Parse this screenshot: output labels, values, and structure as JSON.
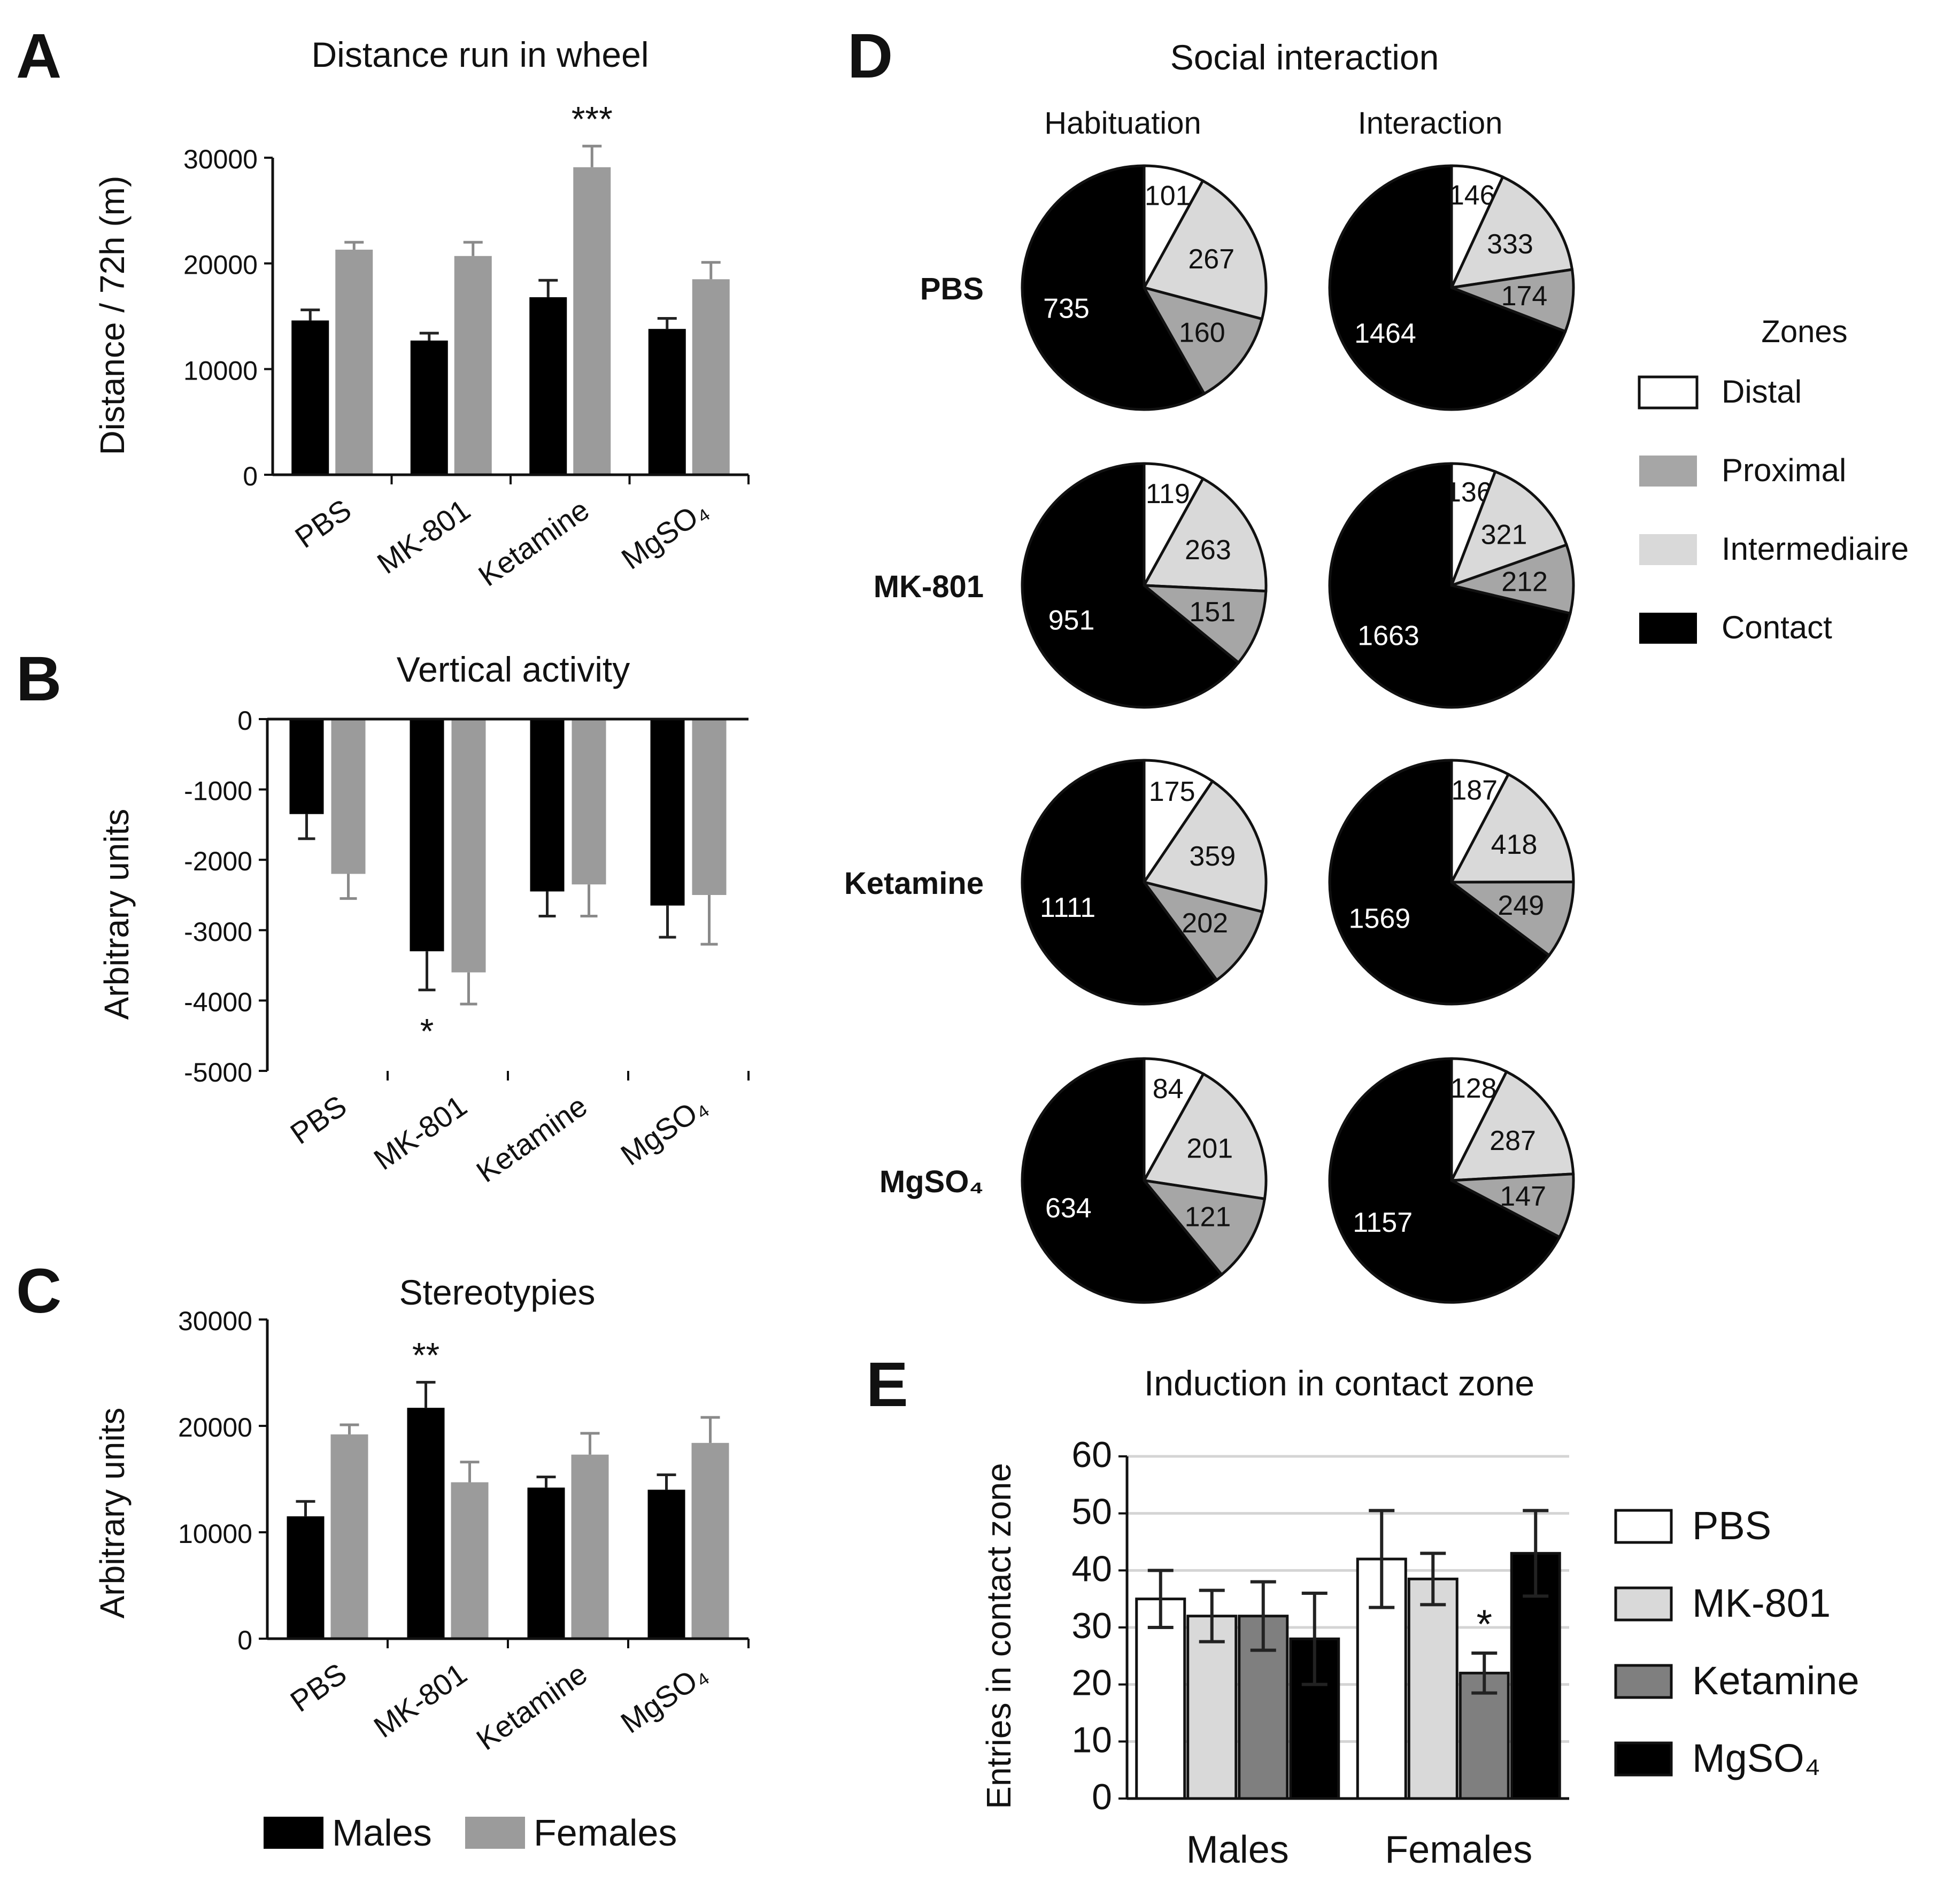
{
  "colors": {
    "males": "#000000",
    "females": "#9b9b9b",
    "distal": "#ffffff",
    "proximal": "#a6a6a6",
    "intermediaire": "#d9d9d9",
    "contact": "#000000",
    "pbs": "#ffffff",
    "mk801": "#d9d9d9",
    "ketamine": "#7f7f7f",
    "mgso4": "#000000"
  },
  "chart_data": [
    {
      "id": "A",
      "panel_label": "A",
      "type": "bar",
      "title": "Distance run in wheel",
      "xlabel": "",
      "ylabel": "Distance / 72h (m)",
      "ylim": [
        0,
        30000
      ],
      "yticks": [
        "0",
        "10000",
        "20000",
        "30000"
      ],
      "categories": [
        "PBS",
        "MK-801",
        "Ketamine",
        "MgSO₄"
      ],
      "series": [
        {
          "name": "Males",
          "values": [
            14600,
            12700,
            16800,
            13800
          ],
          "errors": [
            1000,
            700,
            1600,
            1000
          ]
        },
        {
          "name": "Females",
          "values": [
            21300,
            20700,
            29100,
            18500
          ],
          "errors": [
            700,
            1300,
            2000,
            1600
          ]
        }
      ],
      "annotations": [
        {
          "text": "***",
          "category": 2,
          "series": 1
        }
      ]
    },
    {
      "id": "B",
      "panel_label": "B",
      "type": "bar",
      "title": "Vertical activity",
      "xlabel": "",
      "ylabel": "Arbitrary units",
      "ylim": [
        -5000,
        0
      ],
      "yticks": [
        "-5000",
        "-4000",
        "-3000",
        "-2000",
        "-1000",
        "0"
      ],
      "categories": [
        "PBS",
        "MK-801",
        "Ketamine",
        "MgSO₄"
      ],
      "series": [
        {
          "name": "Males",
          "values": [
            -1350,
            -3300,
            -2450,
            -2650
          ],
          "errors": [
            350,
            550,
            350,
            450
          ]
        },
        {
          "name": "Females",
          "values": [
            -2200,
            -3600,
            -2350,
            -2500
          ],
          "errors": [
            350,
            450,
            450,
            700
          ]
        }
      ],
      "annotations": [
        {
          "text": "*",
          "category": 1,
          "series": 0
        }
      ]
    },
    {
      "id": "C",
      "panel_label": "C",
      "type": "bar",
      "title": "Stereotypies",
      "xlabel": "",
      "ylabel": "Arbitrary units",
      "ylim": [
        0,
        30000
      ],
      "yticks": [
        "0",
        "10000",
        "20000",
        "30000"
      ],
      "categories": [
        "PBS",
        "MK-801",
        "Ketamine",
        "MgSO₄"
      ],
      "series": [
        {
          "name": "Males",
          "values": [
            11500,
            21700,
            14200,
            14000
          ],
          "errors": [
            1400,
            2400,
            1000,
            1400
          ]
        },
        {
          "name": "Females",
          "values": [
            19200,
            14700,
            17300,
            18400
          ],
          "errors": [
            900,
            1900,
            2000,
            2400
          ]
        }
      ],
      "annotations": [
        {
          "text": "**",
          "category": 1,
          "series": 0
        }
      ],
      "legend": {
        "position": "bottom",
        "entries": [
          "Males",
          "Females"
        ]
      }
    },
    {
      "id": "D",
      "panel_label": "D",
      "type": "pie",
      "title": "Social interaction",
      "columns": [
        "Habituation",
        "Interaction"
      ],
      "rows": [
        "PBS",
        "MK-801",
        "Ketamine",
        "MgSO₄"
      ],
      "slice_order": [
        "Distal",
        "Intermediaire",
        "Proximal",
        "Contact"
      ],
      "pies": [
        {
          "row": 0,
          "col": 0,
          "values": [
            101,
            267,
            160,
            735
          ]
        },
        {
          "row": 0,
          "col": 1,
          "values": [
            146,
            333,
            174,
            1464
          ]
        },
        {
          "row": 1,
          "col": 0,
          "values": [
            119,
            263,
            151,
            951
          ]
        },
        {
          "row": 1,
          "col": 1,
          "values": [
            136,
            321,
            212,
            1663
          ]
        },
        {
          "row": 2,
          "col": 0,
          "values": [
            175,
            359,
            202,
            1111
          ]
        },
        {
          "row": 2,
          "col": 1,
          "values": [
            187,
            418,
            249,
            1569
          ]
        },
        {
          "row": 3,
          "col": 0,
          "values": [
            84,
            201,
            121,
            634
          ]
        },
        {
          "row": 3,
          "col": 1,
          "values": [
            128,
            287,
            147,
            1157
          ]
        }
      ],
      "legend": {
        "title": "Zones",
        "position": "right",
        "entries": [
          "Distal",
          "Proximal",
          "Intermediaire",
          "Contact"
        ]
      }
    },
    {
      "id": "E",
      "panel_label": "E",
      "type": "bar",
      "title": "Induction in contact zone",
      "xlabel": "",
      "ylabel": "Entries in contact zone",
      "ylim": [
        0,
        60
      ],
      "yticks": [
        "0",
        "10",
        "20",
        "30",
        "40",
        "50",
        "60"
      ],
      "grid": true,
      "categories": [
        "Males",
        "Females"
      ],
      "series": [
        {
          "name": "PBS",
          "values": [
            35,
            42
          ],
          "errors": [
            5,
            8.5
          ]
        },
        {
          "name": "MK-801",
          "values": [
            32,
            38.5
          ],
          "errors": [
            4.5,
            4.5
          ]
        },
        {
          "name": "Ketamine",
          "values": [
            32,
            22
          ],
          "errors": [
            6,
            3.5
          ]
        },
        {
          "name": "MgSO₄",
          "values": [
            28,
            43
          ],
          "errors": [
            8,
            7.5
          ]
        }
      ],
      "annotations": [
        {
          "text": "*",
          "category": 1,
          "series": 2
        }
      ],
      "legend": {
        "position": "right",
        "entries": [
          "PBS",
          "MK-801",
          "Ketamine",
          "MgSO₄"
        ]
      }
    }
  ]
}
